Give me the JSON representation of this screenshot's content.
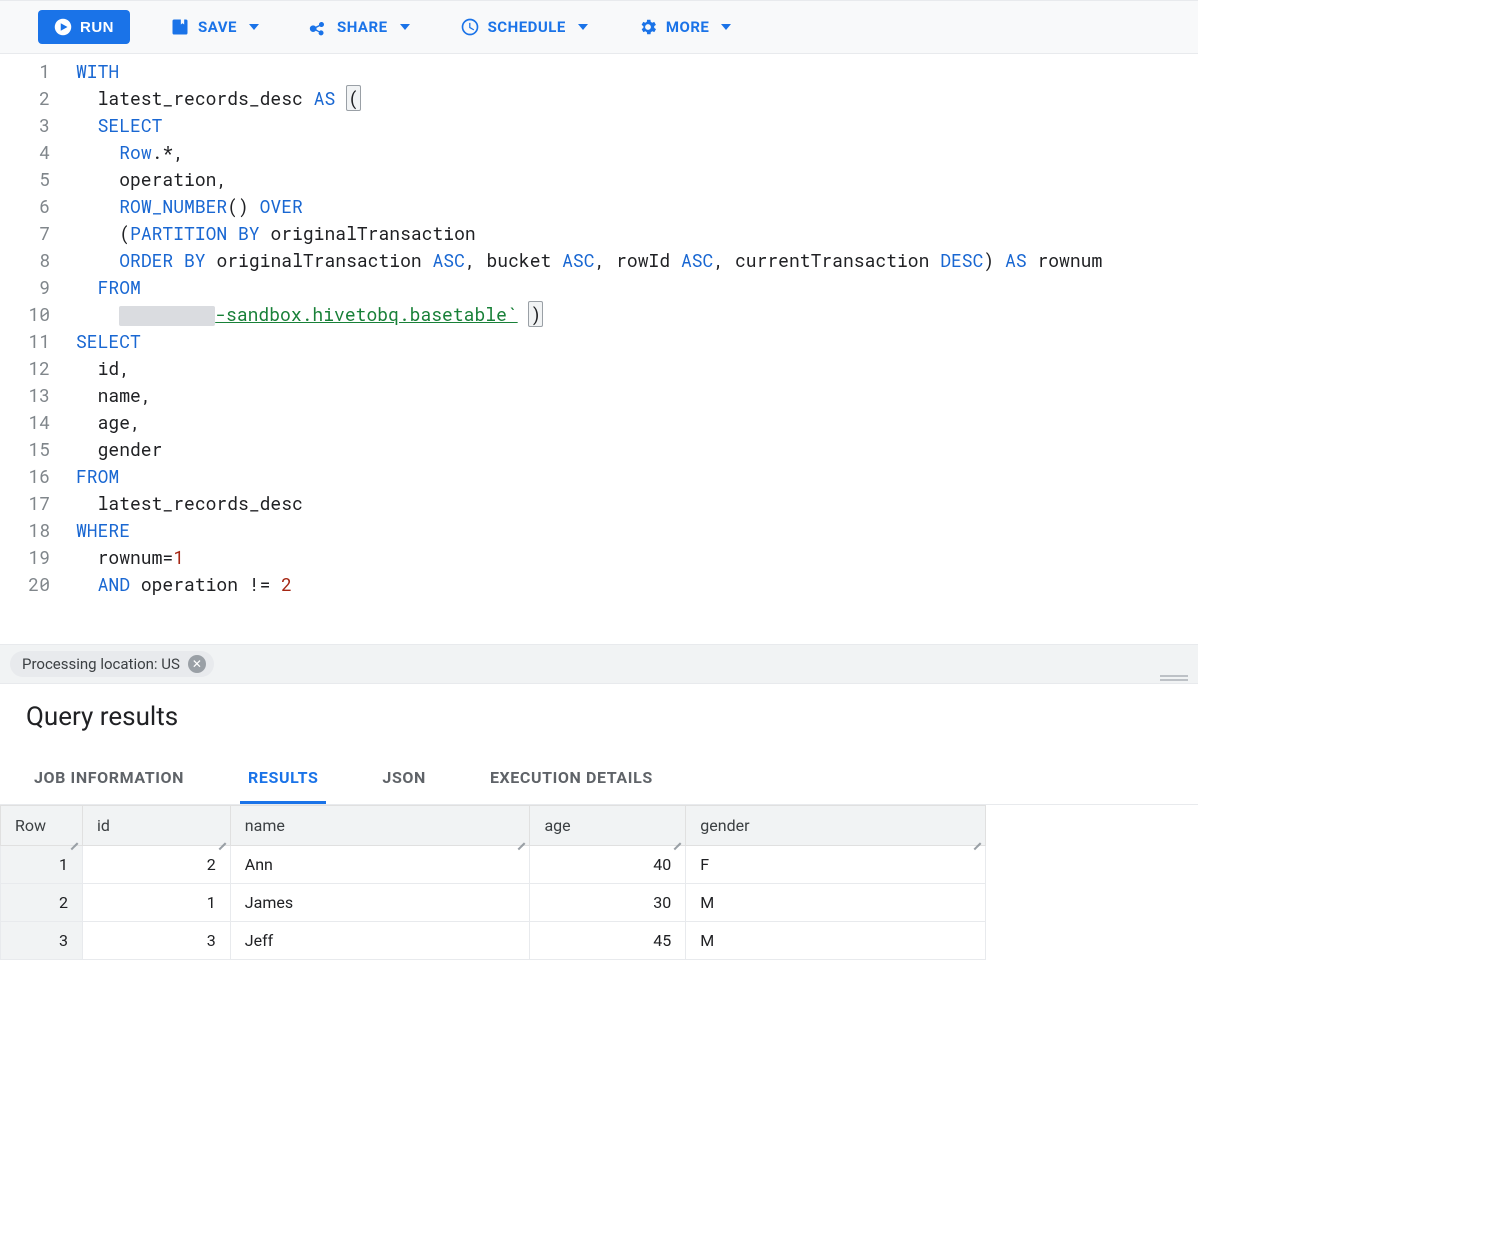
{
  "toolbar": {
    "run_label": "RUN",
    "save_label": "SAVE",
    "share_label": "SHARE",
    "schedule_label": "SCHEDULE",
    "more_label": "MORE"
  },
  "editor": {
    "lines": [
      {
        "n": "1",
        "html": "<span class='kw'>WITH</span>"
      },
      {
        "n": "2",
        "html": "  latest_records_desc <span class='kw'>AS</span> <span class='bracket-hl'>(</span>"
      },
      {
        "n": "3",
        "html": "  <span class='kw'>SELECT</span>"
      },
      {
        "n": "4",
        "html": "    <span class='kw'>Row</span>.*,"
      },
      {
        "n": "5",
        "html": "    operation,"
      },
      {
        "n": "6",
        "html": "    <span class='fn'>ROW_NUMBER</span>() <span class='kw'>OVER</span>"
      },
      {
        "n": "7",
        "html": "    (<span class='kw'>PARTITION</span> <span class='kw'>BY</span> originalTransaction"
      },
      {
        "n": "8",
        "html": "    <span class='kw'>ORDER</span> <span class='kw'>BY</span> originalTransaction <span class='kw'>ASC</span>, bucket <span class='kw'>ASC</span>, rowId <span class='kw'>ASC</span>, currentTransaction <span class='kw'>DESC</span>) <span class='kw'>AS</span> rownum"
      },
      {
        "n": "9",
        "html": "  <span class='kw'>FROM</span>"
      },
      {
        "n": "10",
        "html": "    <span class='mask'></span><span class='tbl'>-sandbox.hivetobq.basetable`</span> <span class='bracket-hl'>)</span>"
      },
      {
        "n": "11",
        "html": "<span class='kw'>SELECT</span>"
      },
      {
        "n": "12",
        "html": "  id,"
      },
      {
        "n": "13",
        "html": "  name,"
      },
      {
        "n": "14",
        "html": "  age,"
      },
      {
        "n": "15",
        "html": "  gender"
      },
      {
        "n": "16",
        "html": "<span class='kw'>FROM</span>"
      },
      {
        "n": "17",
        "html": "  latest_records_desc"
      },
      {
        "n": "18",
        "html": "<span class='kw'>WHERE</span>"
      },
      {
        "n": "19",
        "html": "  rownum=<span class='num'>1</span>"
      },
      {
        "n": "20",
        "html": "  <span class='kw'>AND</span> operation != <span class='num'>2</span>"
      }
    ]
  },
  "status": {
    "processing_location": "Processing location: US"
  },
  "results": {
    "title": "Query results",
    "tabs": {
      "job_info": "JOB INFORMATION",
      "results": "RESULTS",
      "json": "JSON",
      "exec": "EXECUTION DETAILS"
    },
    "columns": {
      "row": "Row",
      "id": "id",
      "name": "name",
      "age": "age",
      "gender": "gender"
    },
    "rows": [
      {
        "row": "1",
        "id": "2",
        "name": "Ann",
        "age": "40",
        "gender": "F"
      },
      {
        "row": "2",
        "id": "1",
        "name": "James",
        "age": "30",
        "gender": "M"
      },
      {
        "row": "3",
        "id": "3",
        "name": "Jeff",
        "age": "45",
        "gender": "M"
      }
    ]
  }
}
